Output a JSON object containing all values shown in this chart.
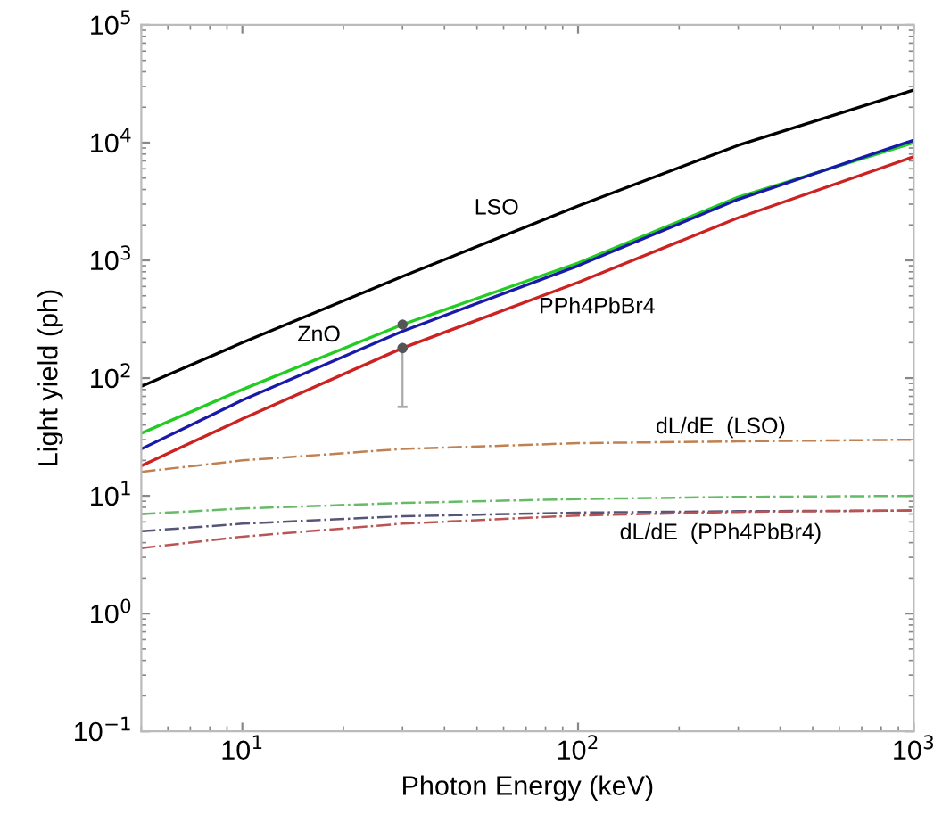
{
  "chart_data": {
    "type": "line",
    "xlabel": "Photon Energy (keV)",
    "ylabel": "Light yield (ph)",
    "log": "xy",
    "xlim": [
      5,
      1000
    ],
    "xticks": [
      {
        "value": 10,
        "label": "10$^{1}$"
      },
      {
        "value": 100,
        "label": "10$^{2}$"
      },
      {
        "value": 1000,
        "label": "10$^{3}$"
      }
    ],
    "ylim": [
      0.1,
      100000
    ],
    "yticks": [
      {
        "value": 0.1,
        "label": "10$^{−1}$"
      },
      {
        "value": 1,
        "label": "10$^{0}$"
      },
      {
        "value": 10,
        "label": "10$^{1}$"
      },
      {
        "value": 100,
        "label": "10$^{2}$"
      },
      {
        "value": 1000,
        "label": "10$^{3}$"
      },
      {
        "value": 10000,
        "label": "10$^{4}$"
      },
      {
        "value": 100000,
        "label": "10$^{5}$"
      }
    ],
    "grid": false,
    "legend": false,
    "series": [
      {
        "name": "LSO",
        "color": "#000000",
        "x": [
          5,
          10,
          30,
          100,
          300,
          1000
        ],
        "values": [
          85,
          200,
          730,
          2900,
          9500,
          28000
        ],
        "line_style": "solid"
      },
      {
        "name": "ZnO",
        "color": "#22cc22",
        "x": [
          5,
          10,
          30,
          100,
          300,
          1000
        ],
        "values": [
          34,
          80,
          285,
          950,
          3450,
          10000
        ],
        "line_style": "solid"
      },
      {
        "color": "#1a1aaa",
        "x": [
          5,
          10,
          30,
          100,
          300,
          1000
        ],
        "values": [
          25,
          65,
          250,
          900,
          3300,
          10500
        ],
        "line_style": "solid"
      },
      {
        "name": "PPh4PbBr4",
        "color": "#cc2222",
        "x": [
          5,
          10,
          30,
          100,
          300,
          1000
        ],
        "values": [
          18,
          45,
          180,
          650,
          2300,
          7600
        ],
        "line_style": "solid"
      },
      {
        "type": "scatter",
        "color": "#555555",
        "marker": "circle",
        "x": [
          30,
          30
        ],
        "values": [
          285,
          180
        ],
        "errors": [
          null,
          [
            57,
            180
          ]
        ]
      },
      {
        "name": "dL/dE  (LSO)",
        "color": "#c08050",
        "x": [
          5,
          10,
          30,
          100,
          300,
          1000
        ],
        "values": [
          16,
          20,
          25,
          28,
          29,
          30
        ],
        "line_style": "dashdot"
      },
      {
        "color": "#66bb66",
        "x": [
          5,
          10,
          30,
          100,
          300,
          1000
        ],
        "values": [
          7,
          7.8,
          8.7,
          9.4,
          9.8,
          10
        ],
        "line_style": "dashdot"
      },
      {
        "color": "#555577",
        "x": [
          5,
          10,
          30,
          100,
          300,
          1000
        ],
        "values": [
          5,
          5.8,
          6.7,
          7.2,
          7.4,
          7.5
        ],
        "line_style": "dashdot"
      },
      {
        "name": "dL/dE  (PPh4PbBr4)",
        "color": "#bb5555",
        "x": [
          5,
          10,
          30,
          100,
          300,
          1000
        ],
        "values": [
          3.6,
          4.5,
          5.8,
          6.8,
          7.3,
          7.5
        ],
        "line_style": "dashdot"
      }
    ]
  }
}
